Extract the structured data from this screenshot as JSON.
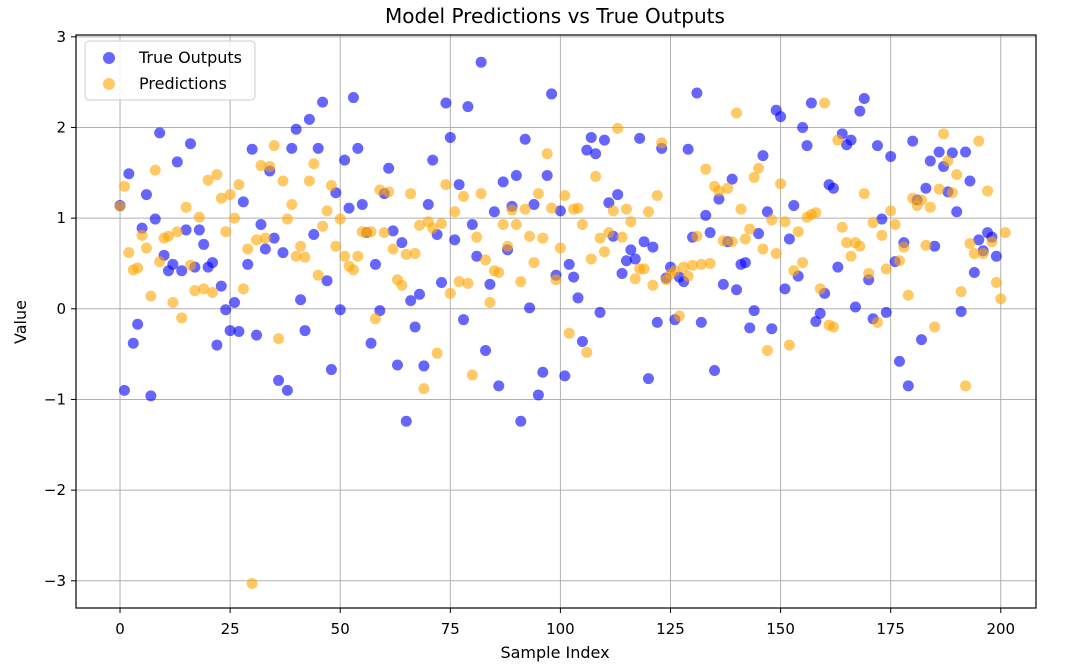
{
  "chart_data": {
    "type": "scatter",
    "title": "Model Predictions vs True Outputs",
    "xlabel": "Sample Index",
    "ylabel": "Value",
    "xlim": [
      -10,
      208
    ],
    "ylim": [
      -3.3,
      3.02
    ],
    "x_ticks": [
      0,
      25,
      50,
      75,
      100,
      125,
      150,
      175,
      200
    ],
    "y_ticks": [
      -3,
      -2,
      -1,
      0,
      1,
      2,
      3
    ],
    "y_tick_labels": [
      "−3",
      "−2",
      "−1",
      "0",
      "1",
      "2",
      "3"
    ],
    "grid": true,
    "legend_position": "top-left",
    "series": [
      {
        "name": "True Outputs",
        "color": "#0000ff",
        "alpha": 0.6,
        "y": [
          1.14,
          -0.9,
          1.49,
          -0.38,
          -0.17,
          0.89,
          1.26,
          -0.96,
          0.99,
          1.94,
          0.59,
          0.42,
          0.49,
          1.62,
          0.42,
          0.87,
          1.82,
          0.46,
          0.87,
          0.71,
          0.46,
          0.51,
          -0.4,
          0.25,
          -0.01,
          -0.24,
          0.07,
          -0.25,
          1.18,
          0.49,
          1.76,
          -0.29,
          0.93,
          0.66,
          1.52,
          0.78,
          -0.79,
          0.62,
          -0.9,
          1.77,
          1.98,
          0.1,
          -0.24,
          2.09,
          0.82,
          1.77,
          2.28,
          0.31,
          -0.67,
          1.28,
          -0.01,
          1.64,
          1.11,
          2.33,
          1.77,
          1.15,
          0.84,
          -0.38,
          0.49,
          -0.02,
          1.27,
          1.55,
          0.86,
          -0.62,
          0.73,
          -1.24,
          0.09,
          -0.2,
          0.16,
          -0.63,
          1.15,
          1.64,
          0.82,
          0.29,
          2.27,
          1.89,
          0.76,
          1.37,
          -0.12,
          2.23,
          0.93,
          0.58,
          2.72,
          -0.46,
          0.27,
          1.07,
          -0.85,
          1.4,
          0.65,
          1.13,
          1.47,
          -1.24,
          1.87,
          0.01,
          1.15,
          -0.95,
          -0.7,
          1.47,
          2.37,
          0.37,
          1.08,
          -0.74,
          0.49,
          0.35,
          0.12,
          -0.36,
          1.75,
          1.89,
          1.71,
          -0.04,
          1.86,
          1.17,
          0.8,
          1.26,
          0.39,
          0.53,
          0.65,
          0.55,
          1.88,
          0.74,
          -0.77,
          0.68,
          -0.15,
          1.77,
          0.34,
          0.46,
          -0.12,
          0.35,
          0.3,
          1.76,
          0.79,
          2.38,
          -0.15,
          1.03,
          0.84,
          -0.68,
          1.21,
          0.27,
          0.74,
          1.43,
          0.21,
          0.49,
          0.51,
          -0.21,
          -0.02,
          0.83,
          1.69,
          1.07,
          -0.22,
          2.19,
          2.12,
          0.22,
          0.77,
          1.14,
          0.36,
          2.0,
          1.8,
          2.27,
          -0.14,
          -0.05,
          0.17,
          1.37,
          1.33,
          0.46,
          1.93,
          1.81,
          1.86,
          0.02,
          2.18,
          2.32,
          0.32,
          -0.11,
          1.8,
          0.99,
          -0.04,
          1.68,
          0.52,
          -0.58,
          0.73,
          -0.85,
          1.85,
          1.2,
          -0.34,
          1.33,
          1.63,
          0.69,
          1.73,
          1.57,
          1.29,
          1.72,
          1.07,
          -0.03,
          1.73,
          1.41,
          0.4,
          0.76,
          0.64,
          0.84,
          0.79,
          0.58
        ]
      },
      {
        "name": "Predictions",
        "color": "#ffa500",
        "alpha": 0.6,
        "y": [
          1.13,
          1.35,
          0.62,
          0.43,
          0.45,
          0.81,
          0.67,
          0.14,
          1.53,
          0.52,
          0.78,
          0.8,
          0.07,
          0.85,
          -0.1,
          1.12,
          0.48,
          0.2,
          1.01,
          0.22,
          1.42,
          0.18,
          1.48,
          1.22,
          0.85,
          1.26,
          1.0,
          1.37,
          0.22,
          0.66,
          -3.03,
          0.76,
          1.58,
          0.78,
          1.57,
          1.8,
          -0.33,
          1.41,
          0.99,
          1.15,
          0.58,
          0.69,
          0.57,
          1.41,
          1.6,
          0.37,
          0.91,
          1.08,
          1.36,
          0.69,
          0.99,
          0.58,
          0.47,
          0.43,
          0.58,
          0.85,
          0.84,
          0.85,
          -0.11,
          1.31,
          0.84,
          1.29,
          0.66,
          0.32,
          0.26,
          0.6,
          1.27,
          0.61,
          0.92,
          -0.88,
          0.96,
          0.89,
          -0.49,
          0.94,
          1.37,
          0.17,
          1.07,
          0.3,
          1.24,
          0.28,
          -0.73,
          0.79,
          1.27,
          0.54,
          0.07,
          0.42,
          0.4,
          0.93,
          0.69,
          1.09,
          0.93,
          0.3,
          1.1,
          0.8,
          0.51,
          1.27,
          0.78,
          1.71,
          1.11,
          0.32,
          0.67,
          1.25,
          -0.27,
          1.1,
          1.11,
          0.93,
          -0.48,
          0.55,
          1.46,
          0.78,
          0.63,
          0.84,
          1.08,
          1.99,
          0.79,
          1.1,
          0.96,
          0.33,
          0.44,
          0.44,
          1.07,
          0.26,
          1.25,
          1.83,
          0.32,
          0.38,
          0.42,
          -0.08,
          0.46,
          0.36,
          0.48,
          0.8,
          0.49,
          1.54,
          0.5,
          1.35,
          1.3,
          0.75,
          1.33,
          0.74,
          2.16,
          1.1,
          0.77,
          0.88,
          1.45,
          1.55,
          0.66,
          -0.46,
          0.98,
          0.61,
          1.38,
          0.96,
          -0.4,
          0.42,
          0.85,
          0.51,
          1.01,
          1.04,
          1.06,
          0.22,
          2.27,
          -0.18,
          -0.2,
          1.86,
          0.9,
          0.73,
          0.58,
          0.73,
          0.69,
          1.27,
          0.39,
          0.95,
          -0.15,
          0.81,
          0.44,
          1.08,
          0.93,
          0.53,
          0.68,
          0.15,
          1.22,
          1.14,
          1.2,
          0.7,
          1.12,
          -0.2,
          1.32,
          1.93,
          1.63,
          1.28,
          1.48,
          0.19,
          -0.85,
          0.72,
          0.61,
          1.85,
          0.61,
          1.3,
          0.74,
          0.29,
          0.11,
          0.84
        ]
      }
    ]
  }
}
